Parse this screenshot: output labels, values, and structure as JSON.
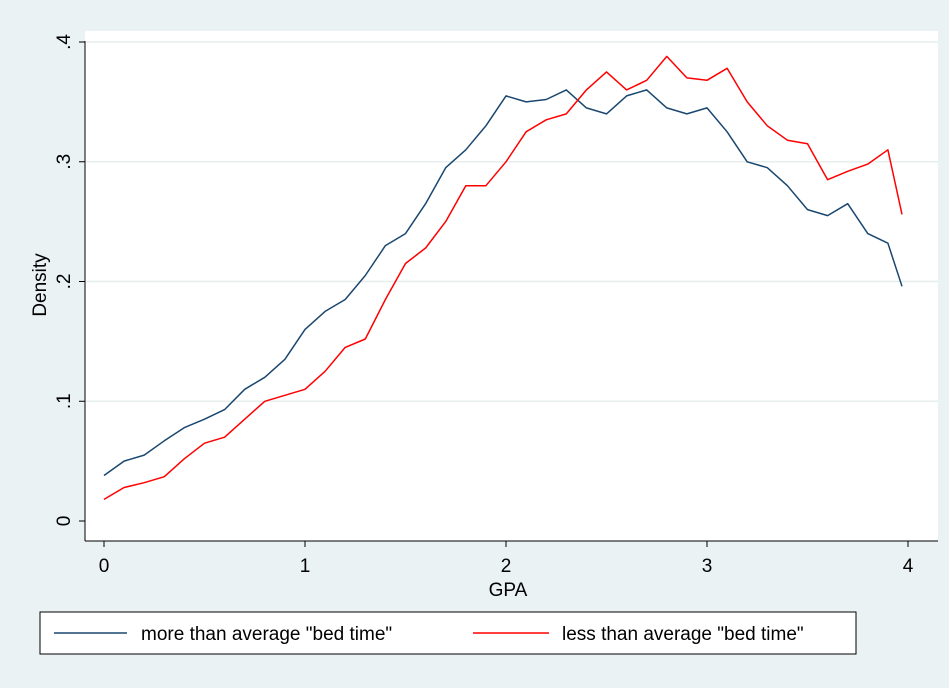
{
  "chart_data": {
    "type": "line",
    "title": "",
    "xlabel": "GPA",
    "ylabel": "Density",
    "xlim": [
      0,
      4
    ],
    "ylim": [
      0,
      0.4
    ],
    "xticks": [
      0,
      1,
      2,
      3,
      4
    ],
    "xtick_labels": [
      "0",
      "1",
      "2",
      "3",
      "4"
    ],
    "yticks": [
      0,
      0.1,
      0.2,
      0.3,
      0.4
    ],
    "ytick_labels": [
      "0",
      ".1",
      ".2",
      ".3",
      ".4"
    ],
    "grid": true,
    "legend_position": "bottom",
    "series": [
      {
        "name": "more than average \"bed time\"",
        "color": "#1a476f",
        "x": [
          0,
          0.1,
          0.2,
          0.3,
          0.4,
          0.5,
          0.6,
          0.7,
          0.8,
          0.9,
          1.0,
          1.1,
          1.2,
          1.3,
          1.4,
          1.5,
          1.6,
          1.7,
          1.8,
          1.9,
          2.0,
          2.1,
          2.2,
          2.3,
          2.4,
          2.5,
          2.6,
          2.7,
          2.8,
          2.9,
          3.0,
          3.1,
          3.2,
          3.3,
          3.4,
          3.5,
          3.6,
          3.7,
          3.8,
          3.9,
          3.97
        ],
        "y": [
          0.038,
          0.05,
          0.055,
          0.067,
          0.078,
          0.085,
          0.093,
          0.11,
          0.12,
          0.135,
          0.16,
          0.175,
          0.185,
          0.205,
          0.23,
          0.24,
          0.265,
          0.295,
          0.31,
          0.33,
          0.355,
          0.35,
          0.352,
          0.36,
          0.345,
          0.34,
          0.355,
          0.36,
          0.345,
          0.34,
          0.345,
          0.325,
          0.3,
          0.295,
          0.28,
          0.26,
          0.255,
          0.265,
          0.24,
          0.232,
          0.196
        ]
      },
      {
        "name": "less than average \"bed time\"",
        "color": "#ff0000",
        "x": [
          0,
          0.1,
          0.2,
          0.3,
          0.4,
          0.5,
          0.6,
          0.7,
          0.8,
          0.9,
          1.0,
          1.1,
          1.2,
          1.3,
          1.4,
          1.5,
          1.6,
          1.7,
          1.8,
          1.9,
          2.0,
          2.1,
          2.2,
          2.3,
          2.4,
          2.5,
          2.6,
          2.7,
          2.8,
          2.9,
          3.0,
          3.1,
          3.2,
          3.3,
          3.4,
          3.5,
          3.6,
          3.7,
          3.8,
          3.9,
          3.97
        ],
        "y": [
          0.018,
          0.028,
          0.032,
          0.037,
          0.052,
          0.065,
          0.07,
          0.085,
          0.1,
          0.105,
          0.11,
          0.125,
          0.145,
          0.152,
          0.185,
          0.215,
          0.228,
          0.25,
          0.28,
          0.28,
          0.3,
          0.325,
          0.335,
          0.34,
          0.36,
          0.375,
          0.36,
          0.368,
          0.388,
          0.37,
          0.368,
          0.378,
          0.35,
          0.33,
          0.318,
          0.315,
          0.285,
          0.292,
          0.298,
          0.31,
          0.256
        ]
      }
    ]
  }
}
